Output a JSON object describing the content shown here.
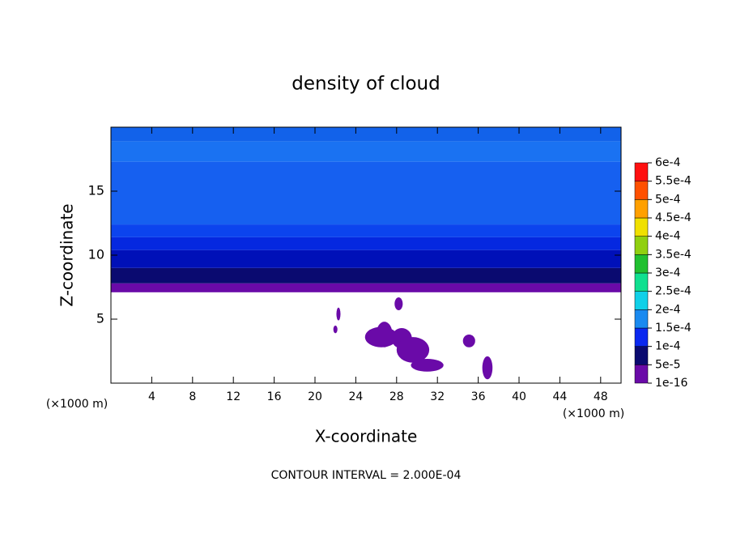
{
  "chart_data": {
    "type": "contour",
    "title": "density of cloud",
    "x_label": "X-coordinate",
    "y_label": "Z-coordinate",
    "x_unit": "(×1000 m)",
    "note": "CONTOUR INTERVAL = 2.000E-04",
    "xlim": [
      0,
      50
    ],
    "ylim": [
      0,
      20
    ],
    "xticks": [
      4,
      8,
      12,
      16,
      20,
      24,
      28,
      32,
      36,
      40,
      44,
      48
    ],
    "yticks": [
      5,
      10,
      15
    ],
    "layers": [
      {
        "bottom": 7.1,
        "top": 7.8,
        "color": "#6a0aa8"
      },
      {
        "bottom": 7.8,
        "top": 9.0,
        "color": "#0a0a70"
      },
      {
        "bottom": 9.0,
        "top": 10.4,
        "color": "#0010b8"
      },
      {
        "bottom": 10.4,
        "top": 11.4,
        "color": "#0528e0"
      },
      {
        "bottom": 11.4,
        "top": 12.4,
        "color": "#0c44ee"
      },
      {
        "bottom": 12.4,
        "top": 17.3,
        "color": "#1660f0"
      },
      {
        "bottom": 17.3,
        "top": 18.9,
        "color": "#1a72f2"
      },
      {
        "bottom": 18.9,
        "top": 20,
        "color": "#1262ea"
      }
    ],
    "cells": [
      {
        "x": 26.8,
        "z": 3.8,
        "w": 0.8,
        "h": 1.0
      },
      {
        "x": 28.5,
        "z": 3.5,
        "w": 1.0,
        "h": 0.8
      },
      {
        "x": 26.5,
        "z": 3.6,
        "w": 1.6,
        "h": 0.8
      },
      {
        "x": 29.6,
        "z": 2.6,
        "w": 1.6,
        "h": 1.0
      },
      {
        "x": 31.0,
        "z": 1.4,
        "w": 1.6,
        "h": 0.5
      },
      {
        "x": 35.1,
        "z": 3.3,
        "w": 0.6,
        "h": 0.5
      },
      {
        "x": 36.9,
        "z": 1.2,
        "w": 0.5,
        "h": 0.9
      },
      {
        "x": 22.3,
        "z": 5.4,
        "w": 0.2,
        "h": 0.5
      },
      {
        "x": 22.0,
        "z": 4.2,
        "w": 0.2,
        "h": 0.3
      },
      {
        "x": 28.2,
        "z": 6.2,
        "w": 0.4,
        "h": 0.5
      }
    ],
    "colorbar": {
      "ticks": [
        {
          "value": 1e-16,
          "label": "1e-16"
        },
        {
          "value": 5e-05,
          "label": "5e-5"
        },
        {
          "value": 0.0001,
          "label": "1e-4"
        },
        {
          "value": 0.00015,
          "label": "1.5e-4"
        },
        {
          "value": 0.0002,
          "label": "2e-4"
        },
        {
          "value": 0.00025,
          "label": "2.5e-4"
        },
        {
          "value": 0.0003,
          "label": "3e-4"
        },
        {
          "value": 0.00035,
          "label": "3.5e-4"
        },
        {
          "value": 0.0004,
          "label": "4e-4"
        },
        {
          "value": 0.00045,
          "label": "4.5e-4"
        },
        {
          "value": 0.0005,
          "label": "5e-4"
        },
        {
          "value": 0.00055,
          "label": "5.5e-4"
        },
        {
          "value": 0.0006,
          "label": "6e-4"
        }
      ],
      "colors": [
        "#6a0aa8",
        "#0a0a70",
        "#0a28f0",
        "#1a8af0",
        "#10d0e8",
        "#10e090",
        "#20c030",
        "#90d010",
        "#f0e000",
        "#ffa000",
        "#ff5000",
        "#ff1010",
        "#ff9090"
      ]
    }
  }
}
